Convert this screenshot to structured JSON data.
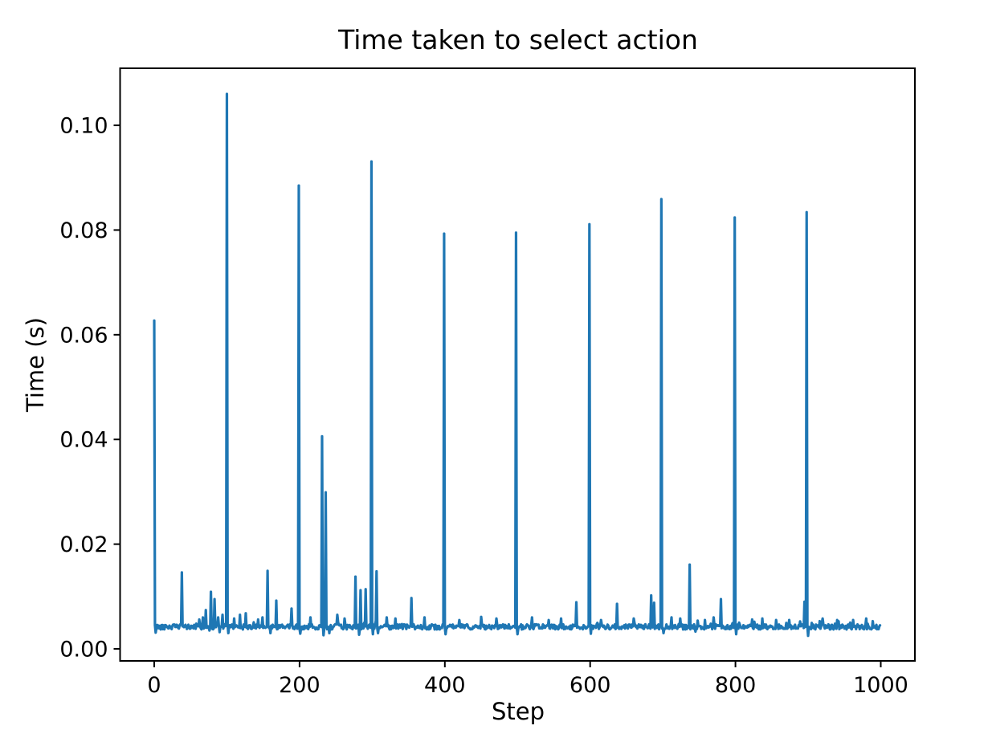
{
  "figure": {
    "background": "#ffffff"
  },
  "chart_data": {
    "type": "line",
    "title": "Time taken to select action",
    "xlabel": "Step",
    "ylabel": "Time (s)",
    "line_color": "#1f77b4",
    "axis_color": "#000000",
    "grid": false,
    "legend": null,
    "n_points": 1000,
    "xlim": [
      -47,
      1047
    ],
    "ylim": [
      -0.0023,
      0.1109
    ],
    "x_ticks": [
      0,
      200,
      400,
      600,
      800,
      1000
    ],
    "y_ticks": [
      0.0,
      0.02,
      0.04,
      0.06,
      0.08,
      0.1
    ],
    "y_tick_decimals": 2,
    "baseline": {
      "mean": 0.0042,
      "noise": 0.0005
    },
    "spikes": [
      [
        0,
        0.0627
      ],
      [
        38,
        0.0146
      ],
      [
        62,
        0.0056
      ],
      [
        67,
        0.006
      ],
      [
        71,
        0.0074
      ],
      [
        78,
        0.0109
      ],
      [
        83,
        0.0095
      ],
      [
        88,
        0.006
      ],
      [
        94,
        0.0065
      ],
      [
        100,
        0.106
      ],
      [
        110,
        0.0058
      ],
      [
        118,
        0.0065
      ],
      [
        126,
        0.0068
      ],
      [
        143,
        0.0056
      ],
      [
        149,
        0.006
      ],
      [
        156,
        0.0149
      ],
      [
        168,
        0.0092
      ],
      [
        189,
        0.0077
      ],
      [
        199,
        0.0885
      ],
      [
        215,
        0.006
      ],
      [
        231,
        0.0406
      ],
      [
        236,
        0.0299
      ],
      [
        252,
        0.0065
      ],
      [
        262,
        0.0058
      ],
      [
        277,
        0.0138
      ],
      [
        284,
        0.0112
      ],
      [
        291,
        0.0114
      ],
      [
        299,
        0.0931
      ],
      [
        306,
        0.0148
      ],
      [
        320,
        0.006
      ],
      [
        332,
        0.0058
      ],
      [
        354,
        0.0097
      ],
      [
        372,
        0.006
      ],
      [
        399,
        0.0793
      ],
      [
        420,
        0.0055
      ],
      [
        450,
        0.0061
      ],
      [
        471,
        0.0058
      ],
      [
        498,
        0.0795
      ],
      [
        520,
        0.006
      ],
      [
        543,
        0.0055
      ],
      [
        560,
        0.0058
      ],
      [
        581,
        0.0089
      ],
      [
        599,
        0.0811
      ],
      [
        615,
        0.0055
      ],
      [
        637,
        0.0086
      ],
      [
        660,
        0.0058
      ],
      [
        684,
        0.0102
      ],
      [
        688,
        0.0088
      ],
      [
        698,
        0.0859
      ],
      [
        712,
        0.006
      ],
      [
        724,
        0.0058
      ],
      [
        737,
        0.0161
      ],
      [
        758,
        0.0055
      ],
      [
        770,
        0.006
      ],
      [
        780,
        0.0095
      ],
      [
        799,
        0.0824
      ],
      [
        823,
        0.0056
      ],
      [
        837,
        0.0058
      ],
      [
        856,
        0.0055
      ],
      [
        874,
        0.0055
      ],
      [
        895,
        0.009
      ],
      [
        898,
        0.0834
      ],
      [
        920,
        0.0058
      ],
      [
        940,
        0.0055
      ],
      [
        962,
        0.0055
      ],
      [
        980,
        0.0058
      ]
    ],
    "dips": [
      [
        2,
        0.0031
      ],
      [
        76,
        0.0035
      ],
      [
        90,
        0.0032
      ],
      [
        102,
        0.003
      ],
      [
        160,
        0.003
      ],
      [
        201,
        0.0029
      ],
      [
        233,
        0.0026
      ],
      [
        241,
        0.003
      ],
      [
        282,
        0.0027
      ],
      [
        301,
        0.0028
      ],
      [
        308,
        0.003
      ],
      [
        401,
        0.0028
      ],
      [
        500,
        0.0028
      ],
      [
        601,
        0.0029
      ],
      [
        701,
        0.003
      ],
      [
        745,
        0.0033
      ],
      [
        801,
        0.0028
      ],
      [
        900,
        0.0025
      ]
    ]
  }
}
